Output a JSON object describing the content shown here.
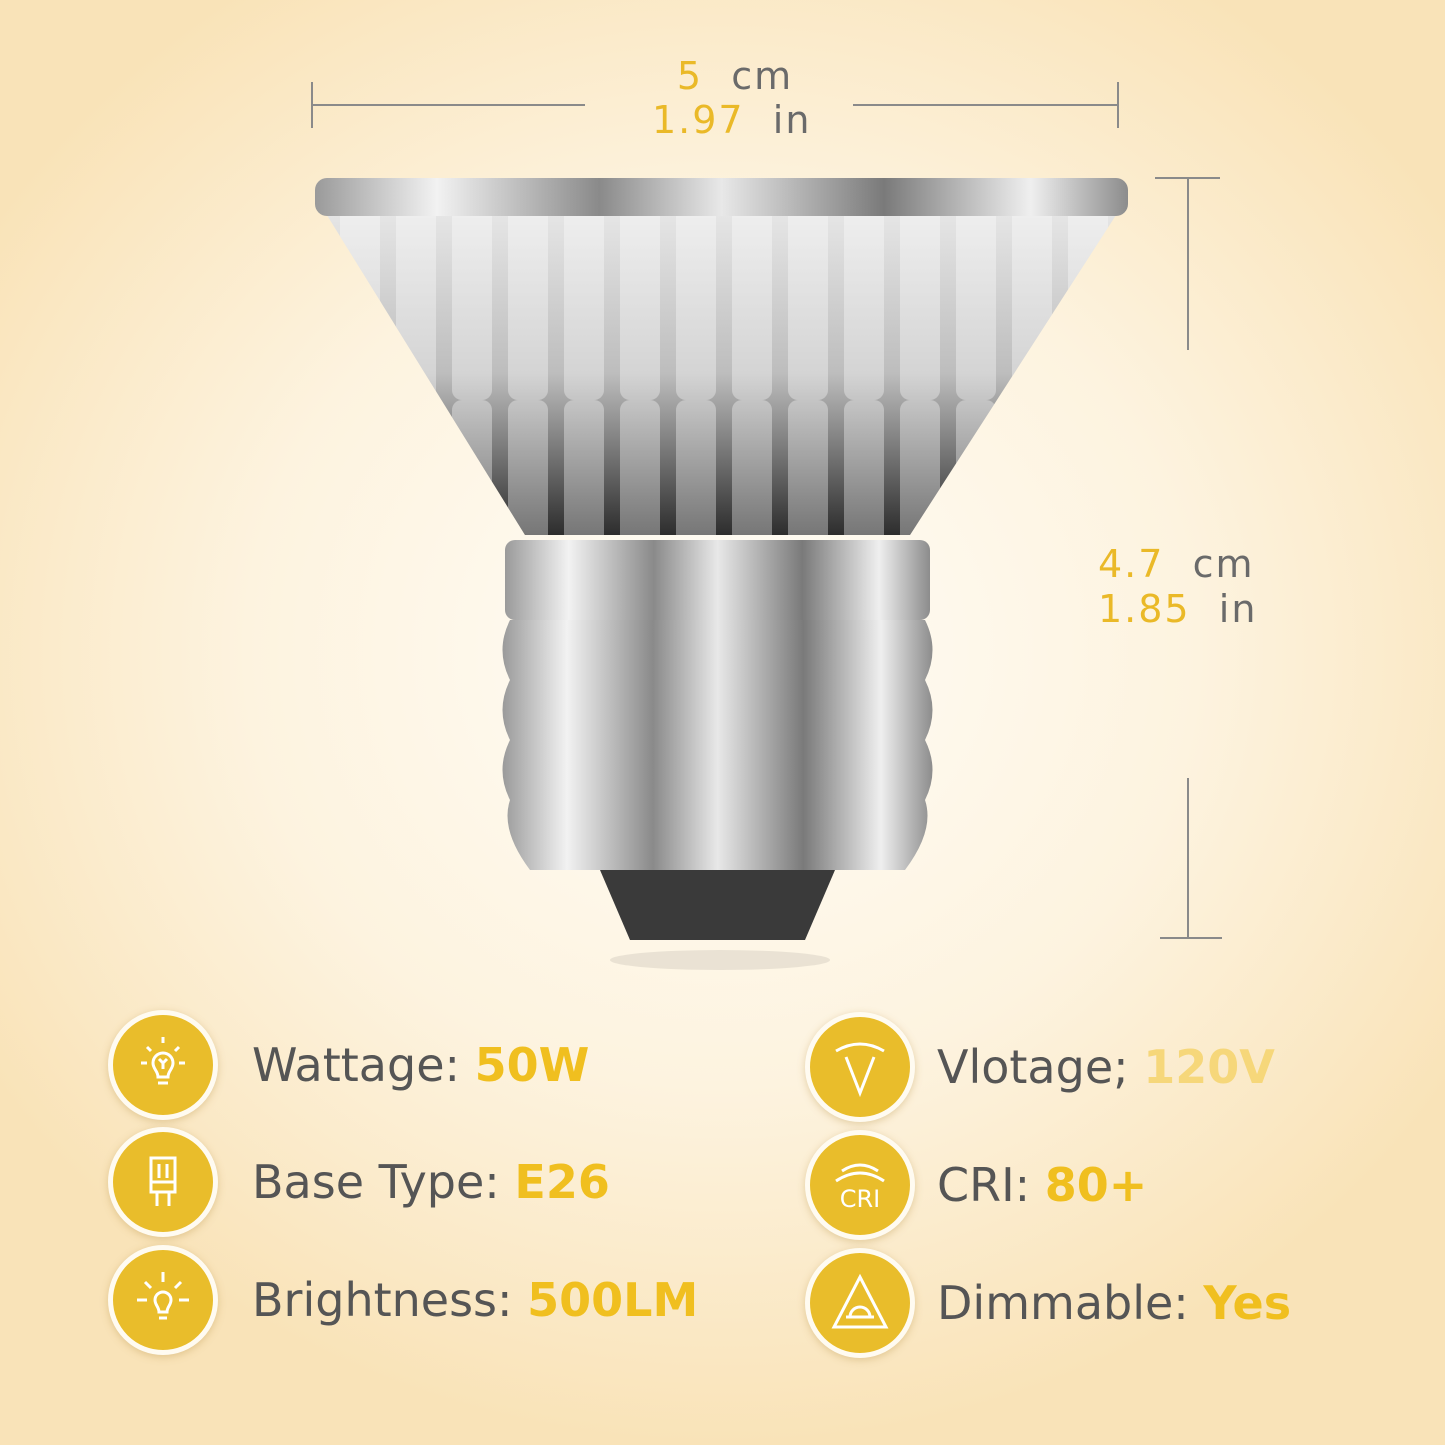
{
  "dimensions": {
    "width": {
      "cm_value": "5",
      "cm_unit": "cm",
      "in_value": "1.97",
      "in_unit": "in"
    },
    "height": {
      "cm_value": "4.7",
      "cm_unit": "cm",
      "in_value": "1.85",
      "in_unit": "in"
    }
  },
  "specs": [
    {
      "label": "Wattage: ",
      "value": "50W",
      "icon": "lightbulb-icon"
    },
    {
      "label": "Base Type: ",
      "value": "E26",
      "icon": "bulb-base-icon"
    },
    {
      "label": "Brightness: ",
      "value": "500LM",
      "icon": "bright-bulb-icon"
    },
    {
      "label": "Vlotage; ",
      "value": "120V",
      "icon": "voltage-gauge-icon"
    },
    {
      "label": "CRI: ",
      "value": "80+",
      "icon": "cri-icon"
    },
    {
      "label": "Dimmable: ",
      "value": "Yes",
      "icon": "dimmable-icon"
    }
  ],
  "colors": {
    "accent": "#e9bd2b",
    "text": "#555555",
    "background": "#fdf3df"
  }
}
